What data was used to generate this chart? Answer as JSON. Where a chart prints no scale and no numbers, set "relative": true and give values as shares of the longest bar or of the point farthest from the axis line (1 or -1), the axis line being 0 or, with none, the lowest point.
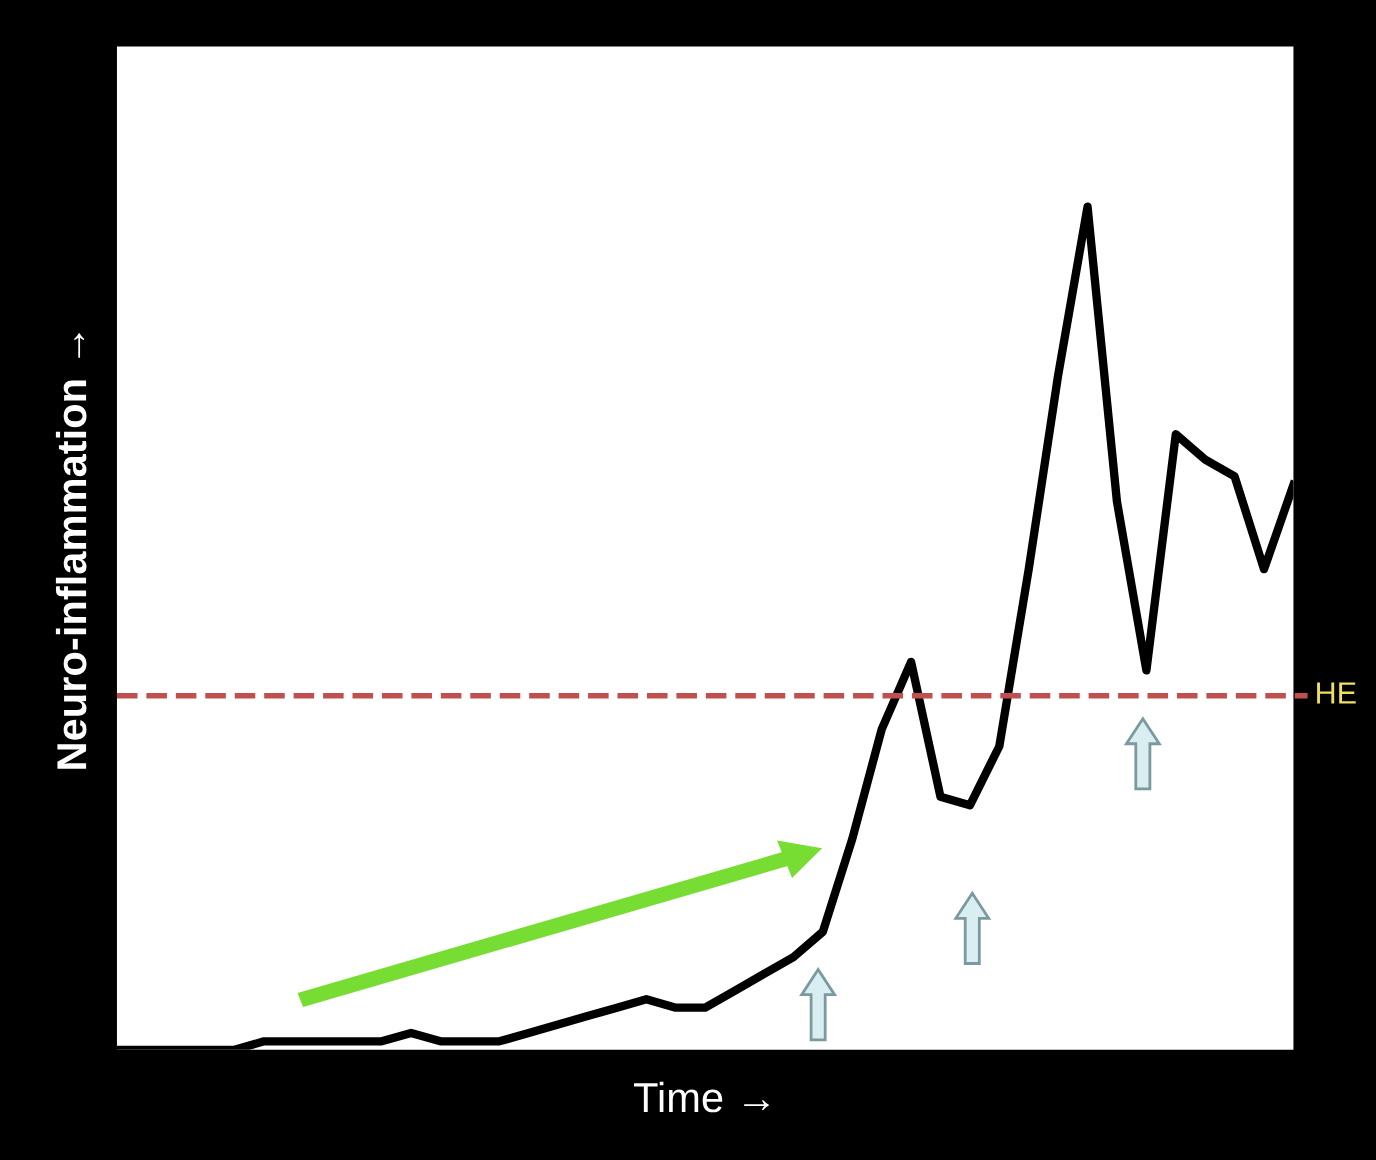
{
  "chart_data": {
    "type": "line",
    "relative": true,
    "xlabel": "Time →",
    "ylabel": "Neuro-inflammation →",
    "categories": [
      null,
      null,
      null,
      null,
      null,
      null,
      null,
      null,
      null,
      null,
      null,
      null,
      null,
      null,
      null,
      null,
      null,
      null,
      null,
      null,
      null,
      null,
      null,
      null,
      null,
      null,
      null,
      null,
      null,
      null,
      null,
      null,
      null,
      null,
      null,
      null,
      null,
      null,
      null,
      null,
      null
    ],
    "series": [
      {
        "color": "#000000",
        "values": [
          0,
          0,
          0,
          0,
          0,
          0.01,
          0.01,
          0.01,
          0.01,
          0.01,
          0.02,
          0.01,
          0.01,
          0.01,
          0.02,
          0.03,
          0.04,
          0.05,
          0.06,
          0.05,
          0.05,
          0.07,
          0.09,
          0.11,
          0.14,
          0.25,
          0.38,
          0.46,
          0.3,
          0.29,
          0.36,
          0.57,
          0.8,
          1,
          0.65,
          0.45,
          0.73,
          0.7,
          0.68,
          0.57,
          0.67
        ]
      }
    ],
    "ref_lines": [
      {
        "axis": "y",
        "value": 0.42,
        "label": "HE",
        "color": "#c0504d",
        "line_style": "dashed"
      }
    ],
    "grid": false,
    "legend": false,
    "marker": "none",
    "line_style": "solid"
  }
}
